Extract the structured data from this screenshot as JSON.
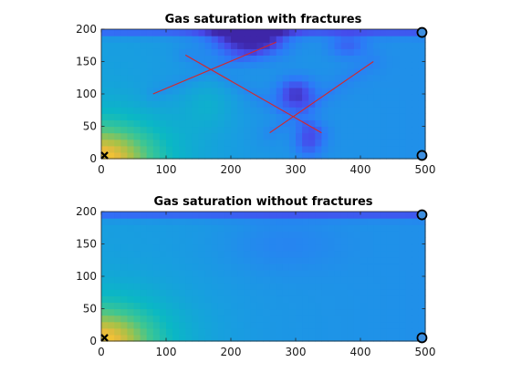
{
  "chart_data": [
    {
      "type": "heatmap",
      "title": "Gas saturation with fractures",
      "xlabel": "",
      "ylabel": "",
      "xlim": [
        0,
        500
      ],
      "ylim": [
        0,
        200
      ],
      "xticks": [
        "0",
        "100",
        "200",
        "300",
        "400",
        "500"
      ],
      "yticks": [
        "0",
        "50",
        "100",
        "150",
        "200"
      ],
      "colormap": "parula",
      "fractures": [
        {
          "x1": 80,
          "y1": 100,
          "x2": 270,
          "y2": 180
        },
        {
          "x1": 130,
          "y1": 160,
          "x2": 340,
          "y2": 40
        },
        {
          "x1": 260,
          "y1": 40,
          "x2": 420,
          "y2": 150
        }
      ],
      "injector": {
        "x": 5,
        "y": 5
      },
      "producers": [
        {
          "x": 495,
          "y": 195
        },
        {
          "x": 495,
          "y": 5
        }
      ]
    },
    {
      "type": "heatmap",
      "title": "Gas saturation without fractures",
      "xlabel": "",
      "ylabel": "",
      "xlim": [
        0,
        500
      ],
      "ylim": [
        0,
        200
      ],
      "xticks": [
        "0",
        "100",
        "200",
        "300",
        "400",
        "500"
      ],
      "yticks": [
        "0",
        "50",
        "100",
        "150",
        "200"
      ],
      "colormap": "parula",
      "fractures": [],
      "injector": {
        "x": 5,
        "y": 5
      },
      "producers": [
        {
          "x": 495,
          "y": 195
        },
        {
          "x": 495,
          "y": 5
        }
      ]
    }
  ],
  "colors": {
    "fracture": "#d62728",
    "producer_fill": "#3d8fe0",
    "marker_stroke": "#000000"
  }
}
